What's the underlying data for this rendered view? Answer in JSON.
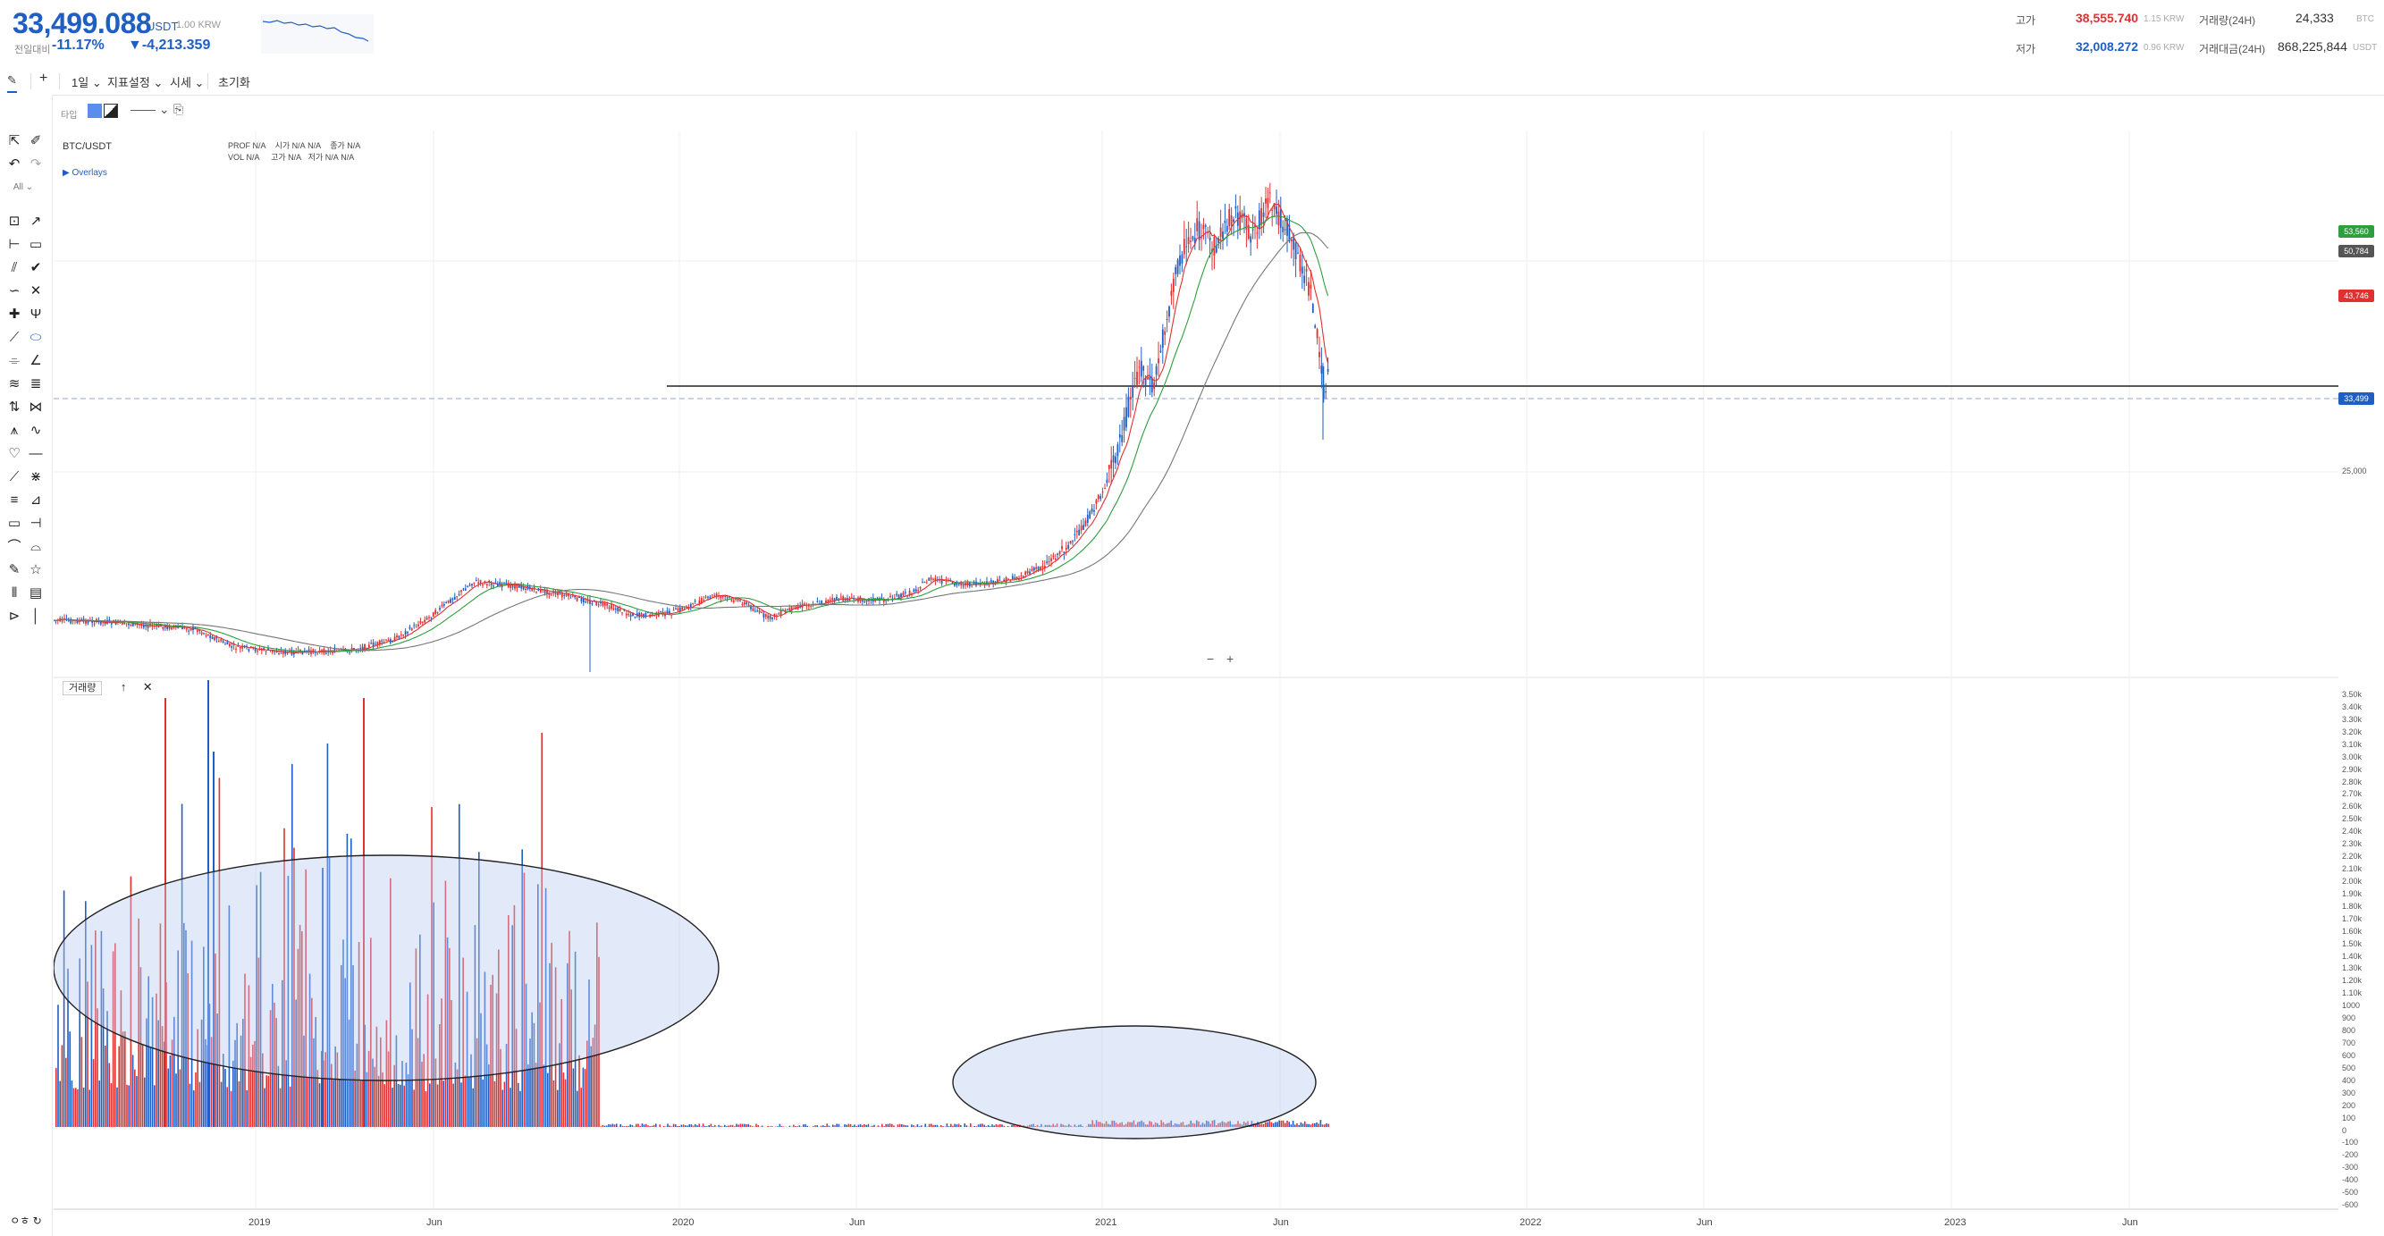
{
  "header": {
    "price": "33,499.088",
    "price_unit": "USDT",
    "price_sub": "1.00 KRW",
    "change_label": "전일대비",
    "change_pct": "-11.17%",
    "change_abs": "▼-4,213.359",
    "high_label": "고가",
    "high_value": "38,555.740",
    "high_unit": "1.15 KRW",
    "low_label": "저가",
    "low_value": "32,008.272",
    "low_unit": "0.96 KRW",
    "vol_label": "거래량(24H)",
    "vol_value": "24,333",
    "vol_unit": "BTC",
    "amount_label": "거래대금(24H)",
    "amount_value": "868,225,844",
    "amount_unit": "USDT"
  },
  "toolbar": {
    "interval": "1일",
    "indicator": "지표설정",
    "chart_type": "시세",
    "reset": "초기화"
  },
  "subtoolbar": {
    "type_label": "타입"
  },
  "lefttools": {
    "filter_label": "All"
  },
  "chart": {
    "symbol": "BTC/USDT",
    "legend": [
      [
        "PROF",
        "N/A",
        "시가",
        "N/A",
        "N/A",
        "종가",
        "N/A"
      ],
      [
        "VOL",
        "N/A",
        "고가",
        "N/A",
        "저가",
        "N/A",
        "N/A"
      ]
    ],
    "overlays_label": "▶ Overlays",
    "volume_tag": "거래량",
    "x_labels": [
      "2019",
      "Jun",
      "2020",
      "Jun",
      "2021",
      "Jun",
      "2022",
      "Jun",
      "2023",
      "Jun"
    ],
    "price_tags": [
      {
        "label": "53,560",
        "color": "#2e9e3e"
      },
      {
        "label": "50,784",
        "color": "#555555"
      },
      {
        "label": "43,746",
        "color": "#e03131"
      },
      {
        "label": "33,499",
        "color": "#1f5fc4"
      }
    ],
    "y_price_labels": [
      "25,000"
    ],
    "y_volume_labels": [
      "3.50k",
      "3.40k",
      "3.30k",
      "3.20k",
      "3.10k",
      "3.00k",
      "2.90k",
      "2.80k",
      "2.70k",
      "2.60k",
      "2.50k",
      "2.40k",
      "2.30k",
      "2.20k",
      "2.10k",
      "2.00k",
      "1.90k",
      "1.80k",
      "1.70k",
      "1.60k",
      "1.50k",
      "1.40k",
      "1.30k",
      "1.20k",
      "1.10k",
      "1000",
      "900",
      "800",
      "700",
      "600",
      "500",
      "400",
      "300",
      "200",
      "100",
      "0",
      "-100",
      "-200",
      "-300",
      "-400",
      "-500",
      "-600"
    ],
    "up_color": "#e03131",
    "down_color": "#1f5fc4",
    "ma_colors": [
      "#e03131",
      "#2e9e3e",
      "#777777"
    ]
  },
  "footer": {
    "label": "ㅇㅎ"
  }
}
